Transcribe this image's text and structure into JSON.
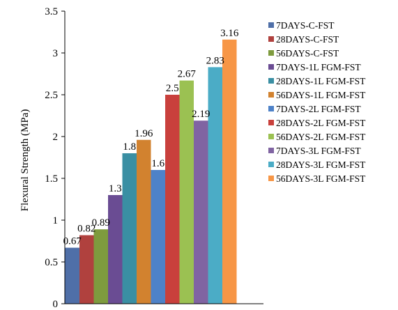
{
  "chart_data": {
    "type": "bar",
    "title": "",
    "xlabel": "",
    "ylabel": "Flexural  Strength (MPa)",
    "ylim": [
      0,
      3.5
    ],
    "yticks": [
      "0",
      "0.5",
      "1",
      "1.5",
      "2",
      "2.5",
      "3",
      "3.5"
    ],
    "grid": false,
    "legend_position": "right",
    "series": [
      {
        "name": "7DAYS-C-FST",
        "value": 0.67,
        "label": "0.67",
        "color": "#4F6FA8"
      },
      {
        "name": "28DAYS-C-FST",
        "value": 0.82,
        "label": "0.82",
        "color": "#B0413E"
      },
      {
        "name": "56DAYS-C-FST",
        "value": 0.89,
        "label": "0.89",
        "color": "#7E9B3E"
      },
      {
        "name": "7DAYS-1L FGM-FST",
        "value": 1.3,
        "label": "1.3",
        "color": "#6A4C93"
      },
      {
        "name": "28DAYS-1L FGM-FST",
        "value": 1.8,
        "label": "1.8",
        "color": "#3A8FA3"
      },
      {
        "name": "56DAYS-1L FGM-FST",
        "value": 1.96,
        "label": "1.96",
        "color": "#D2822F"
      },
      {
        "name": "7DAYS-2L FGM-FST",
        "value": 1.6,
        "label": "1.6",
        "color": "#4E82C8"
      },
      {
        "name": "28DAYS-2L FGM-FST",
        "value": 2.5,
        "label": "2.5",
        "color": "#C9403C"
      },
      {
        "name": "56DAYS-2L FGM-FST",
        "value": 2.67,
        "label": "2.67",
        "color": "#9BC152"
      },
      {
        "name": "7DAYS-3L FGM-FST",
        "value": 2.19,
        "label": "2.19",
        "color": "#8064A2"
      },
      {
        "name": "28DAYS-3L FGM-FST",
        "value": 2.83,
        "label": "2.83",
        "color": "#4BACC6"
      },
      {
        "name": "56DAYS-3L FGM-FST",
        "value": 3.16,
        "label": "3.16",
        "color": "#F79646"
      }
    ]
  }
}
